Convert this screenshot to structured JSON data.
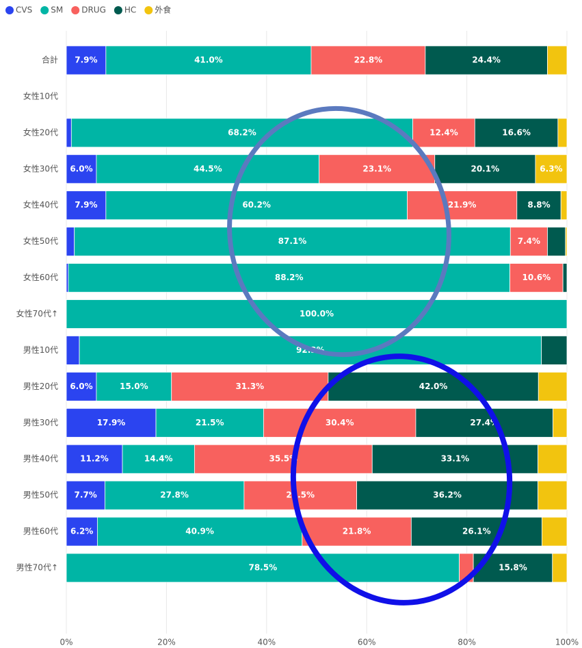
{
  "chart_data": {
    "type": "stacked_barh",
    "categories": [
      "合計",
      "女性10代",
      "女性20代",
      "女性30代",
      "女性40代",
      "女性50代",
      "女性60代",
      "女性70代↑",
      "男性10代",
      "男性20代",
      "男性30代",
      "男性40代",
      "男性50代",
      "男性60代",
      "男性70代↑"
    ],
    "series": [
      {
        "name": "CVS",
        "color": "#2b44f0",
        "values": [
          7.9,
          null,
          1.0,
          6.0,
          7.9,
          1.6,
          0.4,
          0,
          2.6,
          6.0,
          17.9,
          11.2,
          7.7,
          6.2,
          0
        ],
        "value_labels": [
          "7.9%",
          null,
          null,
          "6.0%",
          "7.9%",
          null,
          null,
          null,
          null,
          "6.0%",
          "17.9%",
          "11.2%",
          "7.7%",
          "6.2%",
          null
        ]
      },
      {
        "name": "SM",
        "color": "#00b5a5",
        "values": [
          41.0,
          null,
          68.2,
          44.5,
          60.2,
          87.1,
          88.2,
          100.0,
          92.3,
          15.0,
          21.5,
          14.4,
          27.8,
          40.9,
          78.5
        ],
        "value_labels": [
          "41.0%",
          null,
          "68.2%",
          "44.5%",
          "60.2%",
          "87.1%",
          "88.2%",
          "100.0%",
          "92.3%",
          "15.0%",
          "21.5%",
          "14.4%",
          "27.8%",
          "40.9%",
          "78.5%"
        ]
      },
      {
        "name": "DRUG",
        "color": "#f8615e",
        "values": [
          22.8,
          null,
          12.4,
          23.1,
          21.9,
          7.4,
          10.6,
          0,
          0,
          31.3,
          30.4,
          35.5,
          22.5,
          21.8,
          2.8
        ],
        "value_labels": [
          "22.8%",
          null,
          "12.4%",
          "23.1%",
          "21.9%",
          "7.4%",
          "10.6%",
          null,
          null,
          "31.3%",
          "30.4%",
          "35.5%",
          "22.5%",
          "21.8%",
          null
        ]
      },
      {
        "name": "HC",
        "color": "#005a4f",
        "values": [
          24.4,
          null,
          16.6,
          20.1,
          8.8,
          3.6,
          0.8,
          0,
          5.1,
          42.0,
          27.4,
          33.1,
          36.2,
          26.1,
          15.8
        ],
        "value_labels": [
          "24.4%",
          null,
          "16.6%",
          "20.1%",
          "8.8%",
          null,
          null,
          null,
          null,
          "42.0%",
          "27.4%",
          "33.1%",
          "36.2%",
          "26.1%",
          "15.8%"
        ]
      },
      {
        "name": "外食",
        "color": "#f2c40f",
        "values": [
          3.9,
          null,
          1.8,
          6.3,
          1.2,
          0.3,
          0,
          0,
          0,
          5.7,
          2.8,
          5.8,
          5.8,
          5.0,
          2.9
        ],
        "value_labels": [
          null,
          null,
          null,
          "6.3%",
          null,
          null,
          null,
          null,
          null,
          null,
          null,
          null,
          null,
          null,
          null
        ]
      }
    ],
    "xlim": [
      0,
      100
    ],
    "xticks": [
      {
        "value": 0,
        "label": "0%"
      },
      {
        "value": 20,
        "label": "20%"
      },
      {
        "value": 40,
        "label": "40%"
      },
      {
        "value": 60,
        "label": "60%"
      },
      {
        "value": 80,
        "label": "80%"
      },
      {
        "value": 100,
        "label": "100%"
      }
    ],
    "grid": true,
    "legend": "top-left"
  }
}
